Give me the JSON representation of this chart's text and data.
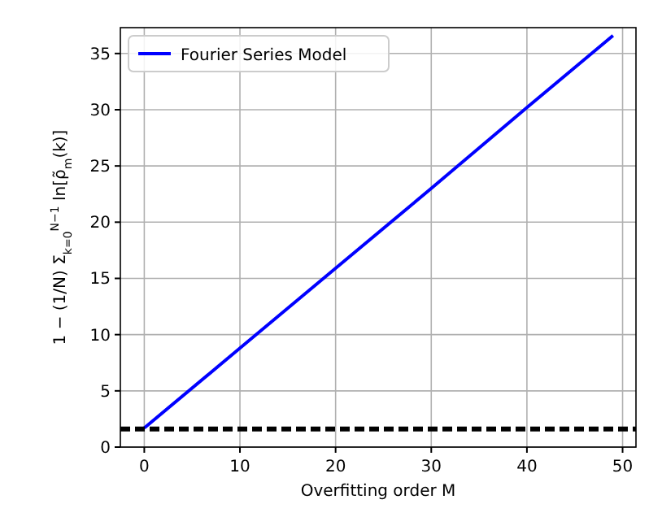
{
  "chart_data": {
    "type": "line",
    "xlabel": "Overfitting order M",
    "ylabel": "1 − (1/N) Σ$_{k=0}$$^{N−1}$ ln[ρ̃$_{m}$(k)]",
    "x": [
      0,
      10,
      20,
      30,
      40,
      49
    ],
    "series": [
      {
        "name": "Fourier Series Model",
        "color": "#0000ff",
        "values": [
          1.7,
          8.8,
          15.9,
          23.0,
          30.2,
          36.6
        ]
      }
    ],
    "xlim": [
      -2.5,
      51.4
    ],
    "xticks": [
      0,
      10,
      20,
      30,
      40,
      50
    ],
    "ylim": [
      0,
      37.3
    ],
    "yticks": [
      0,
      5,
      10,
      15,
      20,
      25,
      30,
      35
    ],
    "ref_lines": [
      {
        "axis": "y",
        "value": 1.6,
        "color": "#000000",
        "line_style": "dashed"
      }
    ],
    "grid": true,
    "legend": "top left",
    "line_style": "solid",
    "marker": "none"
  }
}
